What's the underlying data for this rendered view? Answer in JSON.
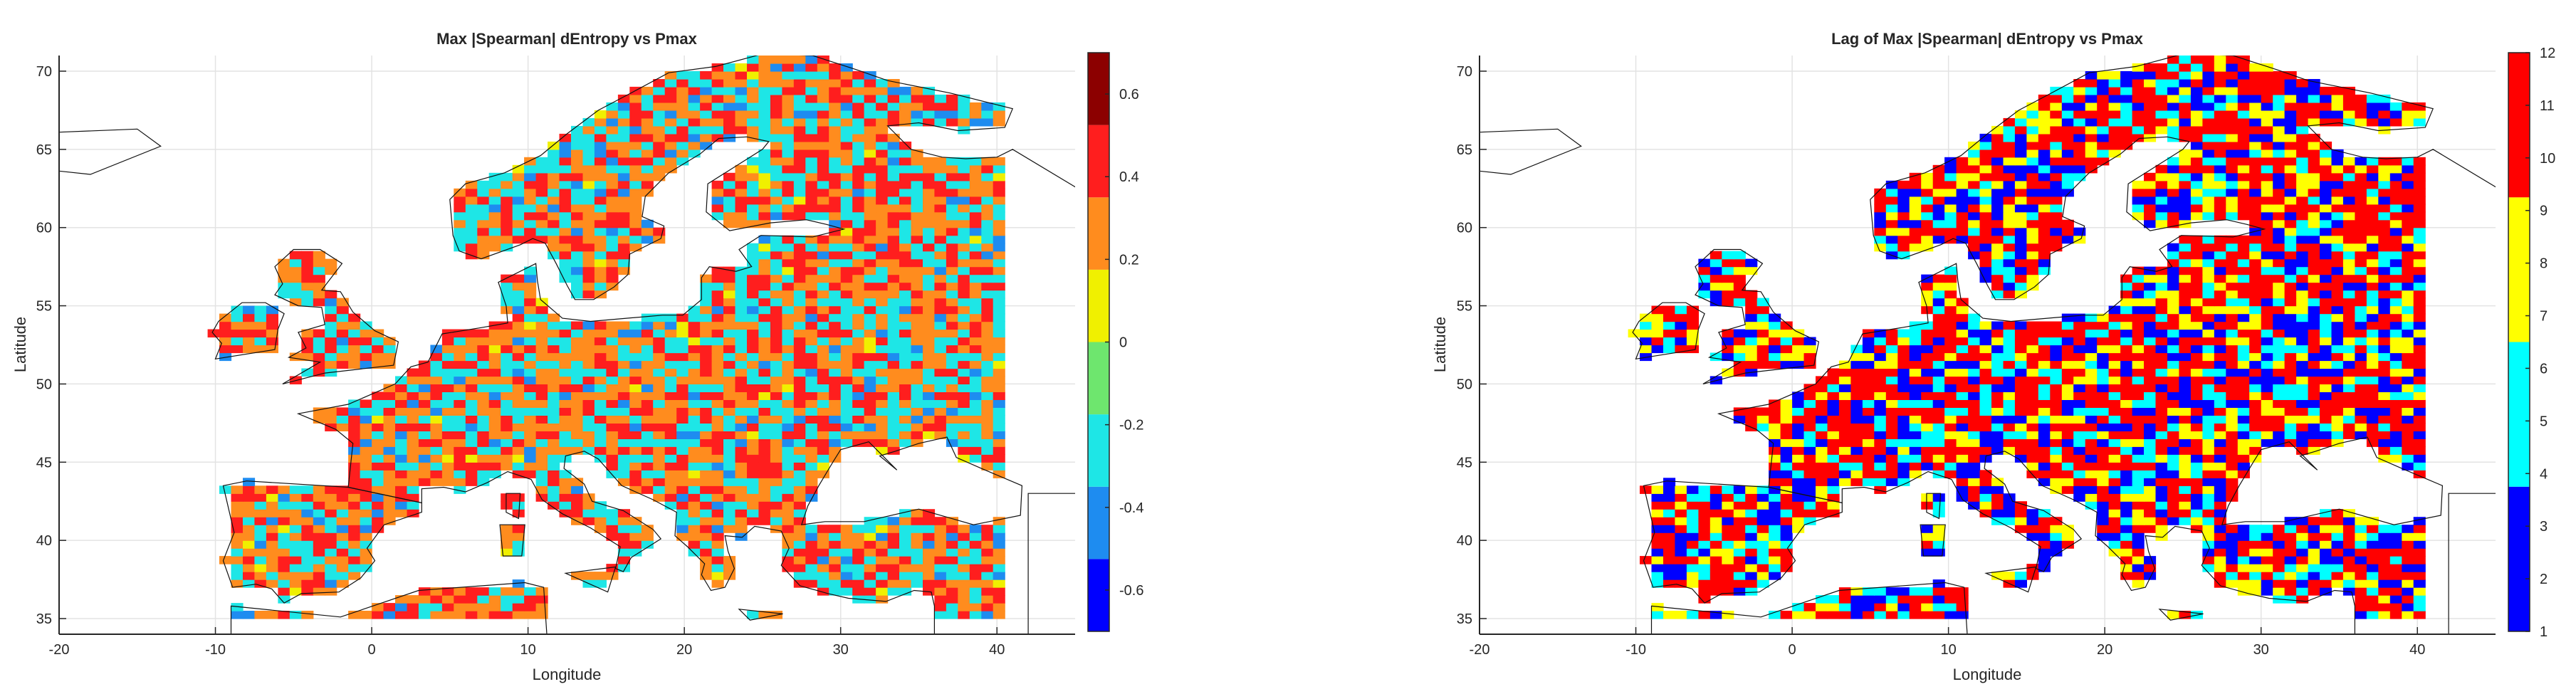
{
  "chart_data": [
    {
      "type": "heatmap",
      "title": "Max |Spearman| dEntropy vs Pmax",
      "xlabel": "Longitude",
      "ylabel": "Latitude",
      "xlim": [
        -20,
        45
      ],
      "ylim": [
        34,
        71
      ],
      "xticks": [
        "-20",
        "-10",
        "0",
        "10",
        "20",
        "30",
        "40"
      ],
      "yticks": [
        "35",
        "40",
        "45",
        "50",
        "55",
        "60",
        "65",
        "70"
      ],
      "grid": true,
      "colorbar": {
        "range": [
          -0.7,
          0.7
        ],
        "levels": 7,
        "colors": [
          "#0000ff",
          "#1e8cf0",
          "#1ee6e6",
          "#6ee66e",
          "#f0f000",
          "#ff8c1e",
          "#ff1e1e",
          "#8c0000"
        ],
        "tick_labels": [
          "-0.6",
          "-0.4",
          "-0.2",
          "0",
          "0.2",
          "0.4",
          "0.6"
        ],
        "tick_values": [
          -0.6,
          -0.4,
          -0.2,
          0,
          0.2,
          0.4,
          0.6
        ]
      },
      "palette_weights": [
        0,
        6,
        30,
        0,
        2,
        34,
        28,
        0
      ],
      "cell_size_deg": [
        0.75,
        0.5
      ]
    },
    {
      "type": "heatmap",
      "title": "Lag of Max |Spearman| dEntropy vs Pmax",
      "xlabel": "Longitude",
      "ylabel": "Latitude",
      "xlim": [
        -20,
        45
      ],
      "ylim": [
        34,
        71
      ],
      "xticks": [
        "-20",
        "-10",
        "0",
        "10",
        "20",
        "30",
        "40"
      ],
      "yticks": [
        "35",
        "40",
        "45",
        "50",
        "55",
        "60",
        "65",
        "70"
      ],
      "grid": true,
      "colorbar": {
        "range": [
          1,
          12
        ],
        "levels": 4,
        "colors": [
          "#0000ff",
          "#00ffff",
          "#ffff00",
          "#ff0000"
        ],
        "tick_labels": [
          "1",
          "2",
          "3",
          "4",
          "5",
          "6",
          "7",
          "8",
          "9",
          "10",
          "11",
          "12"
        ],
        "tick_values": [
          1,
          2,
          3,
          4,
          5,
          6,
          7,
          8,
          9,
          10,
          11,
          12
        ]
      },
      "palette_weights": [
        23,
        18,
        18,
        41
      ],
      "cell_size_deg": [
        0.75,
        0.5
      ]
    }
  ]
}
